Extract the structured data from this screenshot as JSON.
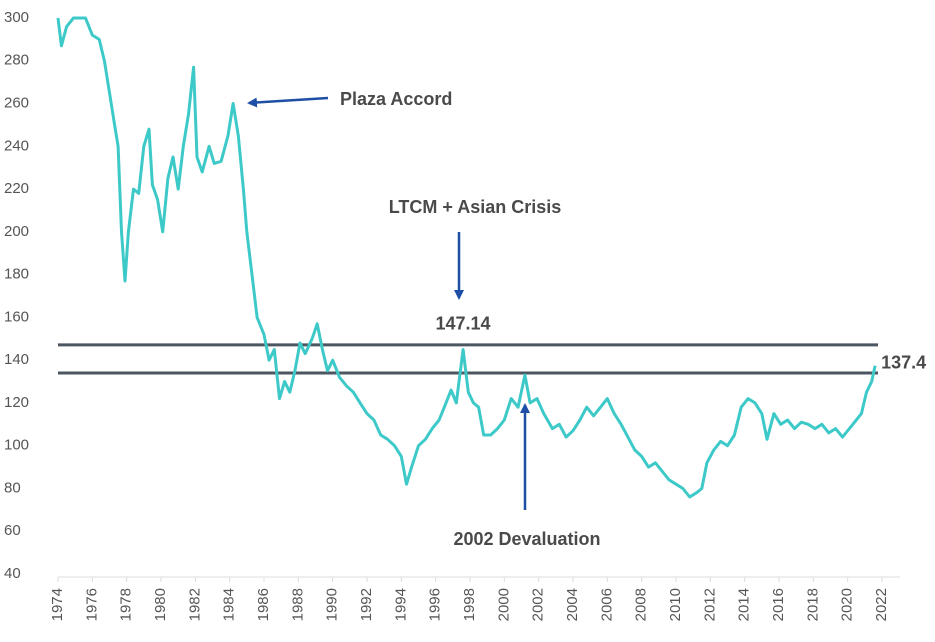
{
  "chart_data": {
    "type": "line",
    "color": "#3ec9c9",
    "x": [
      1974.0,
      1974.2,
      1974.5,
      1974.9,
      1975.6,
      1976.0,
      1976.4,
      1976.7,
      1977.0,
      1977.3,
      1977.5,
      1977.7,
      1977.9,
      1978.1,
      1978.4,
      1978.7,
      1979.0,
      1979.3,
      1979.5,
      1979.8,
      1980.1,
      1980.4,
      1980.7,
      1981.0,
      1981.3,
      1981.6,
      1981.9,
      1982.1,
      1982.4,
      1982.8,
      1983.1,
      1983.5,
      1983.9,
      1984.2,
      1984.5,
      1984.8,
      1985.0,
      1985.3,
      1985.6,
      1986.0,
      1986.3,
      1986.6,
      1986.9,
      1987.2,
      1987.5,
      1987.8,
      1988.1,
      1988.4,
      1988.8,
      1989.1,
      1989.4,
      1989.7,
      1990.0,
      1990.4,
      1990.8,
      1991.2,
      1991.6,
      1992.0,
      1992.4,
      1992.8,
      1993.2,
      1993.6,
      1994.0,
      1994.3,
      1994.6,
      1995.0,
      1995.4,
      1995.8,
      1996.2,
      1996.6,
      1996.9,
      1997.2,
      1997.6,
      1997.9,
      1998.2,
      1998.5,
      1998.8,
      1999.2,
      1999.6,
      2000.0,
      2000.4,
      2000.8,
      2001.2,
      2001.5,
      2001.9,
      2002.3,
      2002.8,
      2003.2,
      2003.6,
      2004.0,
      2004.4,
      2004.8,
      2005.2,
      2005.6,
      2006.0,
      2006.4,
      2006.8,
      2007.2,
      2007.6,
      2008.0,
      2008.4,
      2008.8,
      2009.2,
      2009.6,
      2010.0,
      2010.4,
      2010.8,
      2011.2,
      2011.5,
      2011.8,
      2012.2,
      2012.6,
      2013.0,
      2013.4,
      2013.8,
      2014.2,
      2014.6,
      2015.0,
      2015.3,
      2015.7,
      2016.1,
      2016.5,
      2016.9,
      2017.3,
      2017.7,
      2018.1,
      2018.5,
      2018.9,
      2019.3,
      2019.7,
      2020.1,
      2020.5,
      2020.8,
      2021.1,
      2021.4,
      2021.6
    ],
    "values": [
      300,
      287,
      296,
      300,
      300,
      292,
      290,
      280,
      265,
      250,
      240,
      200,
      177,
      200,
      220,
      218,
      240,
      248,
      222,
      215,
      200,
      225,
      235,
      220,
      240,
      255,
      277,
      235,
      228,
      240,
      232,
      233,
      245,
      260,
      245,
      220,
      200,
      180,
      160,
      152,
      140,
      145,
      122,
      130,
      125,
      135,
      148,
      143,
      150,
      157,
      145,
      135,
      140,
      132,
      128,
      125,
      120,
      115,
      112,
      105,
      103,
      100,
      95,
      82,
      90,
      100,
      103,
      108,
      112,
      120,
      126,
      120,
      145,
      125,
      120,
      118,
      105,
      105,
      108,
      112,
      122,
      118,
      133,
      120,
      122,
      115,
      108,
      110,
      104,
      107,
      112,
      118,
      114,
      118,
      122,
      115,
      110,
      104,
      98,
      95,
      90,
      92,
      88,
      84,
      82,
      80,
      76,
      78,
      80,
      92,
      98,
      102,
      100,
      105,
      118,
      122,
      120,
      115,
      103,
      115,
      110,
      112,
      108,
      111,
      110,
      108,
      110,
      106,
      108,
      104,
      108,
      112,
      115,
      125,
      130,
      137.4
    ],
    "xlim": [
      1974,
      2022
    ],
    "xticks": [
      1974,
      1976,
      1978,
      1980,
      1982,
      1984,
      1986,
      1988,
      1990,
      1992,
      1994,
      1996,
      1998,
      2000,
      2002,
      2004,
      2006,
      2008,
      2010,
      2012,
      2014,
      2016,
      2018,
      2020,
      2022
    ],
    "ylim": [
      40,
      300
    ],
    "yticks": [
      40,
      60,
      80,
      100,
      120,
      140,
      160,
      180,
      200,
      220,
      240,
      260,
      280,
      300
    ],
    "grid": false,
    "hlines": [
      147.14,
      134
    ],
    "hline_color": "#4b5661",
    "annotations": [
      "Plaza Accord",
      "LTCM + Asian Crisis",
      "2002 Devaluation"
    ]
  }
}
